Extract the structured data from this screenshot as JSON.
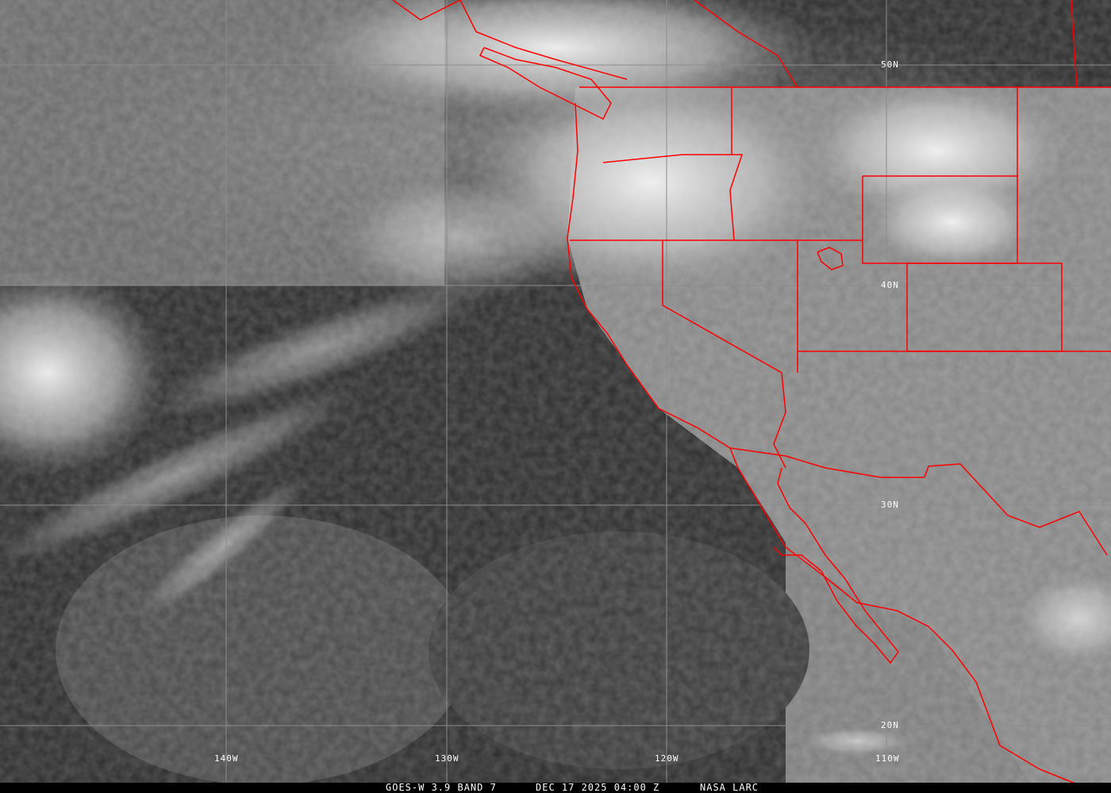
{
  "map": {
    "product": "GOES-W 3.9 BAND 7",
    "datetime": "DEC 17 2025 04:00 Z",
    "source": "NASA LARC",
    "latitude_labels": [
      "50N",
      "40N",
      "30N",
      "20N"
    ],
    "longitude_labels": [
      "140W",
      "130W",
      "120W",
      "110W"
    ],
    "colors": {
      "borders": "#ff0000",
      "grid": "#8c8c8c",
      "text": "#ffffff"
    }
  }
}
